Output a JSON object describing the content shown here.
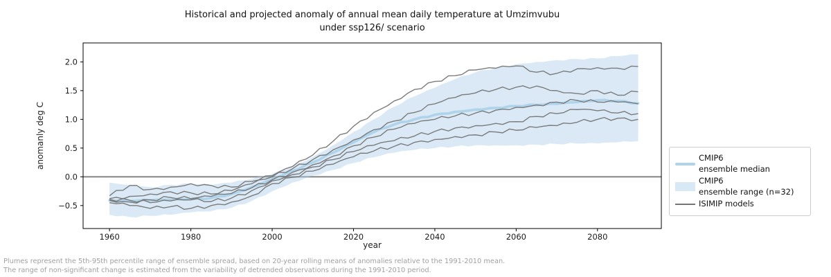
{
  "title": {
    "line1": "Historical and projected anomaly of annual mean daily temperature at Umzimvubu",
    "line2": "under ssp126/ scenario"
  },
  "axes": {
    "ylabel": "anomanly deg C",
    "xlabel": "year"
  },
  "legend": {
    "items": [
      {
        "icon": "median-line",
        "line1": "CMIP6",
        "line2": "ensemble median"
      },
      {
        "icon": "range-fill",
        "line1": "CMIP6",
        "line2": "ensemble range (n=32)"
      },
      {
        "icon": "model-line",
        "line1": "ISIMIP models",
        "line2": ""
      }
    ]
  },
  "footnotes": {
    "line1": "Plumes represent the 5th-95th percentile range of ensemble spread, based on 20-year rolling means of anomalies relative to the 1991-2010 mean.",
    "line2": "The range of non-significant change is estimated from the variability of detrended observations during the 1991-2010 period."
  },
  "colors": {
    "band_fill": "#aecfe8",
    "band_fill_flat": "#d9e8f5",
    "median_line": "#aed3ea",
    "model_line": "#757575",
    "zero_line": "#8a8a8a",
    "spine": "#000000",
    "tick_text": "#1a1a1a",
    "footnote_text": "#a0a0a0",
    "legend_border": "#cccccc"
  },
  "chart_data": {
    "type": "line",
    "title": "Historical and projected anomaly of annual mean daily temperature at Umzimvubu under ssp126/ scenario",
    "xlabel": "year",
    "ylabel": "anomanly deg C",
    "xlim": [
      1953.5,
      2095.7
    ],
    "ylim": [
      -0.9,
      2.33
    ],
    "grid": false,
    "legend_position": "outside-right",
    "zero_line": 0.0,
    "x_ticks": [
      1960,
      1980,
      2000,
      2020,
      2040,
      2060,
      2080
    ],
    "x_tick_labels": [
      "1960",
      "1980",
      "2000",
      "2020",
      "2040",
      "2060",
      "2080"
    ],
    "y_ticks": [
      2.0,
      1.5,
      1.0,
      0.5,
      0.0,
      -0.5
    ],
    "y_tick_labels": [
      "2.0",
      "1.5",
      "1.0",
      "0.5",
      "0.0",
      "−0.5"
    ],
    "x": [
      1960,
      1965,
      1970,
      1975,
      1980,
      1985,
      1990,
      1995,
      2000,
      2005,
      2010,
      2015,
      2020,
      2025,
      2030,
      2035,
      2040,
      2045,
      2050,
      2055,
      2060,
      2065,
      2070,
      2075,
      2080,
      2085,
      2090
    ],
    "band": {
      "name": "CMIP6 ensemble range (n=32)",
      "upper": [
        -0.1,
        -0.14,
        -0.18,
        -0.14,
        -0.12,
        -0.14,
        -0.1,
        -0.04,
        0.05,
        0.18,
        0.35,
        0.55,
        0.78,
        1.0,
        1.22,
        1.4,
        1.55,
        1.7,
        1.82,
        1.9,
        1.96,
        2.0,
        2.03,
        2.05,
        2.06,
        2.1,
        2.13
      ],
      "lower": [
        -0.66,
        -0.7,
        -0.68,
        -0.66,
        -0.62,
        -0.6,
        -0.54,
        -0.42,
        -0.25,
        -0.1,
        0.02,
        0.12,
        0.24,
        0.34,
        0.42,
        0.47,
        0.5,
        0.53,
        0.55,
        0.55,
        0.55,
        0.56,
        0.57,
        0.58,
        0.58,
        0.6,
        0.62
      ]
    },
    "median": {
      "name": "CMIP6 ensemble median",
      "values": [
        -0.41,
        -0.42,
        -0.41,
        -0.4,
        -0.39,
        -0.37,
        -0.3,
        -0.18,
        -0.04,
        0.1,
        0.25,
        0.42,
        0.6,
        0.78,
        0.91,
        1.0,
        1.08,
        1.13,
        1.17,
        1.2,
        1.23,
        1.25,
        1.27,
        1.3,
        1.33,
        1.32,
        1.28
      ]
    },
    "series": [
      {
        "name": "isimip-1",
        "values": [
          -0.33,
          -0.15,
          -0.22,
          -0.18,
          -0.12,
          -0.15,
          -0.18,
          -0.08,
          0.02,
          0.18,
          0.38,
          0.62,
          0.88,
          1.12,
          1.32,
          1.52,
          1.66,
          1.76,
          1.86,
          1.89,
          1.93,
          1.82,
          1.8,
          1.88,
          1.9,
          1.89,
          1.92
        ]
      },
      {
        "name": "isimip-2",
        "values": [
          -0.38,
          -0.34,
          -0.3,
          -0.26,
          -0.28,
          -0.3,
          -0.24,
          -0.12,
          0.0,
          0.14,
          0.3,
          0.47,
          0.64,
          0.82,
          0.97,
          1.12,
          1.27,
          1.38,
          1.46,
          1.52,
          1.56,
          1.58,
          1.5,
          1.45,
          1.5,
          1.42,
          1.48
        ]
      },
      {
        "name": "isimip-3",
        "values": [
          -0.41,
          -0.44,
          -0.4,
          -0.36,
          -0.38,
          -0.34,
          -0.29,
          -0.19,
          -0.05,
          0.08,
          0.21,
          0.36,
          0.54,
          0.69,
          0.83,
          0.93,
          1.0,
          1.06,
          1.11,
          1.16,
          1.21,
          1.25,
          1.3,
          1.33,
          1.3,
          1.3,
          1.27
        ]
      },
      {
        "name": "isimip-4",
        "values": [
          -0.39,
          -0.41,
          -0.45,
          -0.42,
          -0.4,
          -0.43,
          -0.37,
          -0.24,
          -0.07,
          0.04,
          0.17,
          0.3,
          0.44,
          0.55,
          0.63,
          0.71,
          0.79,
          0.85,
          0.89,
          0.93,
          0.96,
          1.05,
          1.1,
          1.17,
          1.15,
          1.11,
          1.1
        ]
      },
      {
        "name": "isimip-5",
        "values": [
          -0.45,
          -0.5,
          -0.55,
          -0.52,
          -0.55,
          -0.5,
          -0.44,
          -0.33,
          -0.12,
          -0.01,
          0.1,
          0.22,
          0.35,
          0.45,
          0.53,
          0.6,
          0.65,
          0.7,
          0.73,
          0.78,
          0.81,
          0.86,
          0.89,
          0.95,
          1.0,
          1.02,
          1.0
        ]
      }
    ]
  }
}
